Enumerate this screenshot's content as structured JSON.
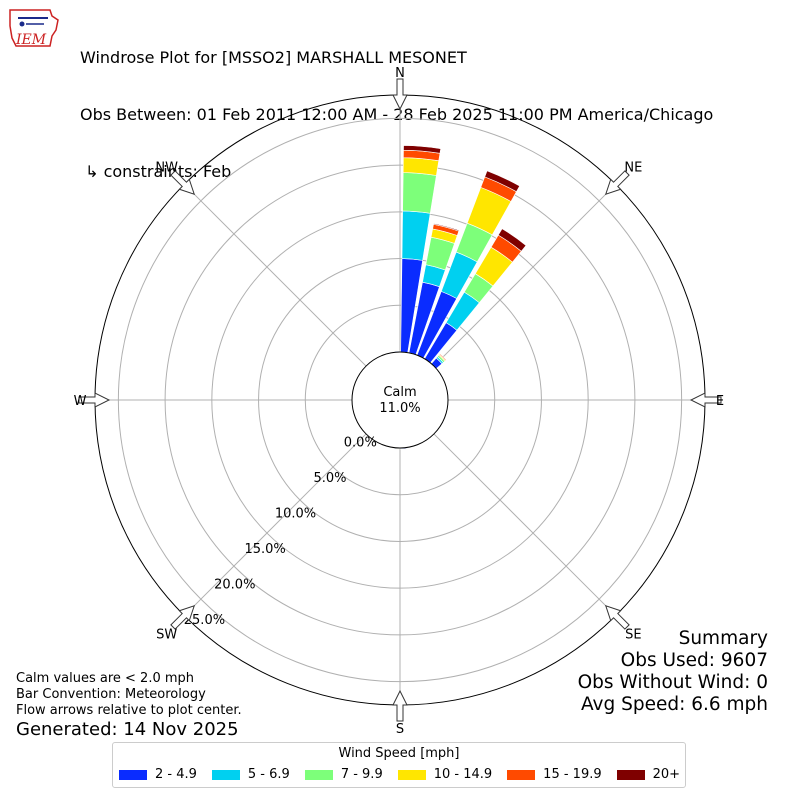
{
  "title": {
    "line1": "Windrose Plot for [MSSO2] MARSHALL MESONET",
    "line2": "Obs Between: 01 Feb 2011 12:00 AM - 28 Feb 2025 11:00 PM America/Chicago",
    "line3": " ↳ constraints: Feb"
  },
  "logo_text": "IEM",
  "chart_data": {
    "type": "windrose",
    "directions": [
      "N",
      "NE",
      "E",
      "SE",
      "S",
      "SW",
      "W",
      "NW"
    ],
    "radial_ticks": [
      "0.0%",
      "5.0%",
      "10.0%",
      "15.0%",
      "20.0%",
      "25.0%"
    ],
    "radial_values": [
      0,
      5,
      10,
      15,
      20,
      25
    ],
    "calm_label": "Calm",
    "calm_value": "11.0%",
    "speed_bins": [
      "2 - 4.9",
      "5 - 6.9",
      "7 - 9.9",
      "10 - 14.9",
      "15 - 19.9",
      "20+"
    ],
    "colors": [
      "#0a2cff",
      "#00d0f0",
      "#7dff7a",
      "#ffe600",
      "#ff4a00",
      "#7f0000"
    ],
    "sectors": [
      {
        "dir": 5,
        "cum": [
          10.0,
          15.1,
          19.2,
          20.8,
          21.6,
          22.1
        ]
      },
      {
        "dir": 15,
        "cum": [
          7.7,
          9.6,
          12.6,
          13.5,
          14.0,
          14.1
        ]
      },
      {
        "dir": 25,
        "cum": [
          7.3,
          11.8,
          15.1,
          19.2,
          20.4,
          21.1
        ]
      },
      {
        "dir": 35,
        "cum": [
          4.5,
          8.3,
          10.6,
          13.9,
          15.4,
          16.2
        ]
      },
      {
        "dir": 45,
        "cum": [
          0.8,
          1.0,
          1.2,
          1.3,
          1.4,
          1.4
        ]
      },
      {
        "dir": 55,
        "cum": [
          0.08,
          0.12,
          0.15,
          0.18,
          0.2,
          0.2
        ]
      },
      {
        "dir": 175,
        "cum": [
          0.1,
          0.12,
          0.14,
          0.15,
          0.15,
          0.15
        ]
      },
      {
        "dir": 185,
        "cum": [
          0.08,
          0.1,
          0.11,
          0.12,
          0.12,
          0.12
        ]
      },
      {
        "dir": 355,
        "cum": [
          0.08,
          0.1,
          0.12,
          0.13,
          0.13,
          0.13
        ]
      }
    ]
  },
  "footnote": {
    "line1": "Calm values are < 2.0 mph",
    "line2": "Bar Convention: Meteorology",
    "line3": "Flow arrows relative to plot center."
  },
  "generated": "Generated: 14 Nov 2025",
  "summary": {
    "heading": "Summary",
    "obs_used": "Obs Used: 9607",
    "obs_without_wind": "Obs Without Wind: 0",
    "avg_speed": "Avg Speed: 6.6 mph"
  },
  "legend": {
    "title": "Wind Speed [mph]",
    "items": [
      "2 - 4.9",
      "5 - 6.9",
      "7 - 9.9",
      "10 - 14.9",
      "15 - 19.9",
      "20+"
    ]
  }
}
